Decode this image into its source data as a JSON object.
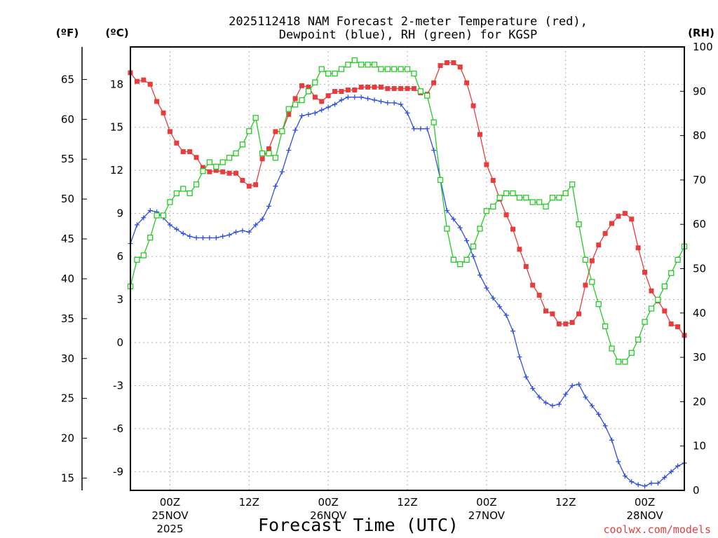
{
  "chart_data": {
    "type": "line",
    "title_line1": "2025112418 NAM Forecast 2-meter Temperature (red),",
    "title_line2": "Dewpoint (blue), RH (green) for KGSP",
    "unit_f": "(ºF)",
    "unit_c": "(ºC)",
    "unit_rh": "(RH)",
    "xlabel": "Forecast Time (UTC)",
    "credit": "coolwx.com/models",
    "x_hours_range": [
      0,
      84
    ],
    "celsius_range": [
      -10.3,
      20.6
    ],
    "rh_range": [
      0,
      100
    ],
    "fahrenheit_ticks": [
      "15",
      "20",
      "25",
      "30",
      "35",
      "40",
      "45",
      "50",
      "55",
      "60",
      "65"
    ],
    "fahrenheit_tick_values": [
      15,
      20,
      25,
      30,
      35,
      40,
      45,
      50,
      55,
      60,
      65
    ],
    "celsius_ticks": [
      "-9",
      "-6",
      "-3",
      "0",
      "3",
      "6",
      "9",
      "12",
      "15",
      "18"
    ],
    "celsius_tick_values": [
      -9,
      -6,
      -3,
      0,
      3,
      6,
      9,
      12,
      15,
      18
    ],
    "rh_ticks": [
      "0",
      "10",
      "20",
      "30",
      "40",
      "50",
      "60",
      "70",
      "80",
      "90",
      "100"
    ],
    "rh_tick_values": [
      0,
      10,
      20,
      30,
      40,
      50,
      60,
      70,
      80,
      90,
      100
    ],
    "x_ticks": [
      {
        "hour": 6,
        "time": "00Z",
        "date": "25NOV",
        "year": "2025"
      },
      {
        "hour": 18,
        "time": "12Z",
        "date": "",
        "year": ""
      },
      {
        "hour": 30,
        "time": "00Z",
        "date": "26NOV",
        "year": ""
      },
      {
        "hour": 42,
        "time": "12Z",
        "date": "",
        "year": ""
      },
      {
        "hour": 54,
        "time": "00Z",
        "date": "27NOV",
        "year": ""
      },
      {
        "hour": 66,
        "time": "12Z",
        "date": "",
        "year": ""
      },
      {
        "hour": 78,
        "time": "00Z",
        "date": "28NOV",
        "year": ""
      }
    ],
    "series": [
      {
        "name": "2-meter Temperature",
        "units": "C",
        "color": "#e83c3c",
        "marker": "filled-square",
        "x": [
          0,
          1,
          2,
          3,
          4,
          5,
          6,
          7,
          8,
          9,
          10,
          11,
          12,
          13,
          14,
          15,
          16,
          17,
          18,
          19,
          20,
          21,
          22,
          23,
          24,
          25,
          26,
          27,
          28,
          29,
          30,
          31,
          32,
          33,
          34,
          35,
          36,
          37,
          38,
          39,
          40,
          41,
          42,
          43,
          44,
          45,
          46,
          47,
          48,
          49,
          50,
          51,
          52,
          53,
          54,
          55,
          56,
          57,
          58,
          59,
          60,
          61,
          62,
          63,
          64,
          65,
          66,
          67,
          68,
          69,
          70,
          71,
          72,
          73,
          74,
          75,
          76,
          77,
          78,
          79,
          80,
          81,
          82,
          83,
          84
        ],
        "values": [
          18.8,
          18.2,
          18.3,
          18.0,
          16.8,
          16.0,
          14.7,
          13.9,
          13.3,
          13.3,
          12.9,
          12.2,
          11.9,
          12.0,
          11.9,
          11.8,
          11.8,
          11.3,
          10.9,
          11.0,
          12.8,
          13.5,
          14.7,
          14.7,
          15.9,
          17.0,
          17.9,
          17.8,
          17.1,
          16.8,
          17.2,
          17.5,
          17.5,
          17.6,
          17.6,
          17.8,
          17.8,
          17.8,
          17.8,
          17.7,
          17.7,
          17.7,
          17.7,
          17.7,
          17.4,
          17.3,
          18.1,
          19.3,
          19.5,
          19.5,
          19.2,
          18.1,
          16.5,
          14.5,
          12.4,
          11.3,
          10.0,
          8.9,
          7.9,
          6.5,
          5.3,
          4.0,
          3.3,
          2.2,
          2.0,
          1.3,
          1.3,
          1.4,
          2.0,
          4.0,
          5.7,
          6.8,
          7.6,
          8.3,
          8.8,
          9.0,
          8.6,
          6.6,
          4.9,
          3.6,
          2.9,
          2.2,
          1.3,
          1.1,
          0.5
        ]
      },
      {
        "name": "Dewpoint",
        "units": "C",
        "color": "#2f4fe0",
        "marker": "plus",
        "x": [
          0,
          1,
          2,
          3,
          4,
          5,
          6,
          7,
          8,
          9,
          10,
          11,
          12,
          13,
          14,
          15,
          16,
          17,
          18,
          19,
          20,
          21,
          22,
          23,
          24,
          25,
          26,
          27,
          28,
          29,
          30,
          31,
          32,
          33,
          34,
          35,
          36,
          37,
          38,
          39,
          40,
          41,
          42,
          43,
          44,
          45,
          46,
          47,
          48,
          49,
          50,
          51,
          52,
          53,
          54,
          55,
          56,
          57,
          58,
          59,
          60,
          61,
          62,
          63,
          64,
          65,
          66,
          67,
          68,
          69,
          70,
          71,
          72,
          73,
          74,
          75,
          76,
          77,
          78,
          79,
          80,
          81,
          82,
          83,
          84
        ],
        "values": [
          6.9,
          8.2,
          8.7,
          9.2,
          9.1,
          8.7,
          8.2,
          7.9,
          7.6,
          7.4,
          7.3,
          7.3,
          7.3,
          7.3,
          7.4,
          7.5,
          7.7,
          7.8,
          7.7,
          8.2,
          8.6,
          9.5,
          10.9,
          11.9,
          13.4,
          14.8,
          15.8,
          15.9,
          16.0,
          16.2,
          16.4,
          16.6,
          16.9,
          17.1,
          17.1,
          17.1,
          17.0,
          16.9,
          16.8,
          16.7,
          16.7,
          16.6,
          16.0,
          14.9,
          14.9,
          14.9,
          13.4,
          11.4,
          9.2,
          8.6,
          8.0,
          7.1,
          6.0,
          4.7,
          3.8,
          3.1,
          2.5,
          1.9,
          0.8,
          -1.0,
          -2.4,
          -3.2,
          -3.8,
          -4.2,
          -4.4,
          -4.3,
          -3.6,
          -3.0,
          -2.9,
          -3.8,
          -4.4,
          -5.0,
          -5.8,
          -6.8,
          -8.3,
          -9.3,
          -9.7,
          -9.9,
          -10.0,
          -9.8,
          -9.8,
          -9.4,
          -9.0,
          -8.6,
          -8.4
        ]
      },
      {
        "name": "RH",
        "units": "%",
        "color": "#22cc22",
        "marker": "open-square",
        "x": [
          0,
          1,
          2,
          3,
          4,
          5,
          6,
          7,
          8,
          9,
          10,
          11,
          12,
          13,
          14,
          15,
          16,
          17,
          18,
          19,
          20,
          21,
          22,
          23,
          24,
          25,
          26,
          27,
          28,
          29,
          30,
          31,
          32,
          33,
          34,
          35,
          36,
          37,
          38,
          39,
          40,
          41,
          42,
          43,
          44,
          45,
          46,
          47,
          48,
          49,
          50,
          51,
          52,
          53,
          54,
          55,
          56,
          57,
          58,
          59,
          60,
          61,
          62,
          63,
          64,
          65,
          66,
          67,
          68,
          69,
          70,
          71,
          72,
          73,
          74,
          75,
          76,
          77,
          78,
          79,
          80,
          81,
          82,
          83,
          84
        ],
        "values": [
          46,
          52,
          53,
          57,
          62,
          62,
          65,
          67,
          68,
          67,
          69,
          72,
          74,
          73,
          74,
          75,
          76,
          78,
          81,
          84,
          76,
          76,
          75,
          81,
          86,
          87,
          88,
          90,
          92,
          95,
          94,
          94,
          95,
          96,
          97,
          96,
          96,
          96,
          95,
          95,
          95,
          95,
          95,
          94,
          90,
          89,
          83,
          70,
          59,
          52,
          51,
          52,
          55,
          59,
          63,
          64,
          66,
          67,
          67,
          66,
          66,
          65,
          65,
          64,
          66,
          66,
          67,
          69,
          60,
          52,
          47,
          42,
          37,
          32,
          29,
          29,
          31,
          34,
          38,
          41,
          43,
          46,
          49,
          52,
          55
        ]
      }
    ]
  }
}
